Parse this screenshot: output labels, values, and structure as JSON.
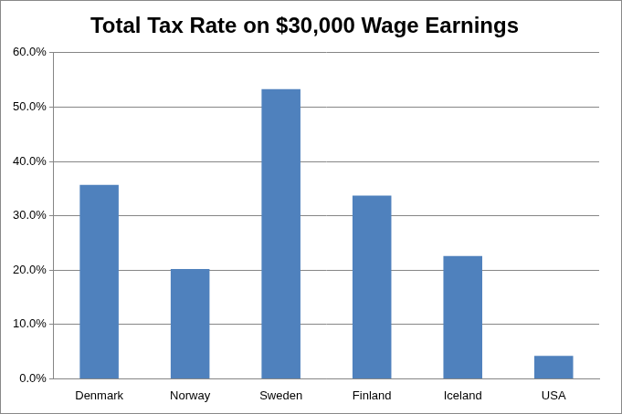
{
  "chart_data": {
    "type": "bar",
    "title": "Total Tax Rate on $30,000 Wage Earnings",
    "categories": [
      "Denmark",
      "Norway",
      "Sweden",
      "Finland",
      "Iceland",
      "USA"
    ],
    "values": [
      35.7,
      20.2,
      53.3,
      33.7,
      22.6,
      4.2
    ],
    "color": "#4f81bd",
    "ylim": [
      0,
      60
    ],
    "yticks": [
      {
        "value": 0,
        "label": "0.0%"
      },
      {
        "value": 10,
        "label": "10.0%"
      },
      {
        "value": 20,
        "label": "20.0%"
      },
      {
        "value": 30,
        "label": "30.0%"
      },
      {
        "value": 40,
        "label": "40.0%"
      },
      {
        "value": 50,
        "label": "50.0%"
      },
      {
        "value": 60,
        "label": "60.0%"
      }
    ],
    "grid": true
  }
}
